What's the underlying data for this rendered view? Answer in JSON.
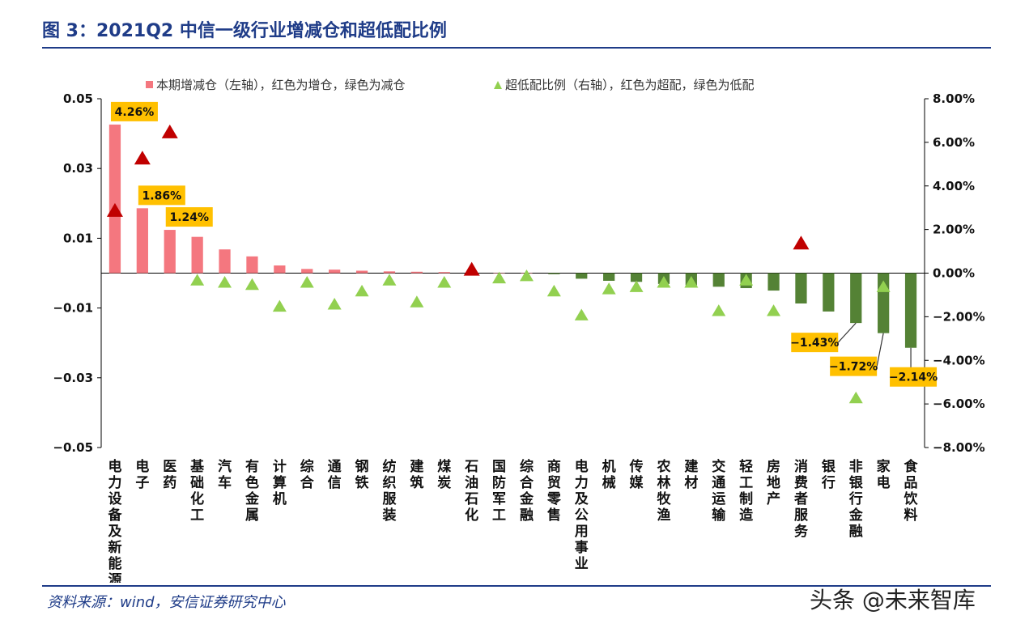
{
  "title": "图 3：2021Q2 中信一级行业增减仓和超低配比例",
  "source": "资料来源：wind，安信证券研究中心",
  "watermark": "头条 @未来智库",
  "chart_data": {
    "type": "bar",
    "categories": [
      "电力设备及新能源",
      "电子",
      "医药",
      "基础化工",
      "汽车",
      "有色金属",
      "计算机",
      "综合",
      "通信",
      "钢铁",
      "纺织服装",
      "建筑",
      "煤炭",
      "石油石化",
      "国防军工",
      "综合金融",
      "商贸零售",
      "电力及公用事业",
      "机械",
      "传媒",
      "农林牧渔",
      "建材",
      "交通运输",
      "轻工制造",
      "房地产",
      "消费者服务",
      "银行",
      "非银行金融",
      "家电",
      "食品饮料"
    ],
    "series": [
      {
        "name": "本期增减仓（左轴），红色为增仓，绿色为减仓",
        "type": "bar",
        "axis": "left",
        "values": [
          0.0426,
          0.0186,
          0.0124,
          0.0104,
          0.0068,
          0.0048,
          0.0022,
          0.0012,
          0.001,
          0.0007,
          0.0005,
          0.0004,
          0.0003,
          0.0,
          0.0,
          0.0,
          -0.0003,
          -0.0016,
          -0.0022,
          -0.0025,
          -0.0031,
          -0.0035,
          -0.0039,
          -0.0043,
          -0.005,
          -0.0087,
          -0.011,
          -0.0143,
          -0.0172,
          -0.0214
        ]
      },
      {
        "name": "超低配比例（右轴），红色为超配，绿色为低配",
        "type": "scatter",
        "axis": "right",
        "values": [
          0.029,
          0.053,
          0.065,
          -0.003,
          -0.004,
          -0.005,
          -0.015,
          -0.004,
          -0.014,
          -0.008,
          -0.003,
          -0.013,
          -0.004,
          0.002,
          -0.002,
          -0.001,
          -0.008,
          -0.019,
          -0.007,
          -0.006,
          -0.004,
          -0.004,
          -0.017,
          -0.003,
          -0.017,
          0.014,
          null,
          -0.057,
          -0.006,
          null
        ]
      }
    ],
    "yaxis_left": {
      "ticks": [
        "0.05",
        "0.03",
        "0.01",
        "−0.01",
        "−0.03",
        "−0.05"
      ],
      "range": [
        -0.05,
        0.05
      ]
    },
    "yaxis_right": {
      "ticks": [
        "8.00%",
        "6.00%",
        "4.00%",
        "2.00%",
        "0.00%",
        "−2.00%",
        "−4.00%",
        "−6.00%",
        "−8.00%"
      ],
      "range": [
        -0.08,
        0.08
      ]
    },
    "data_labels": [
      {
        "index": 0,
        "text": "4.26%"
      },
      {
        "index": 1,
        "text": "1.86%"
      },
      {
        "index": 2,
        "text": "1.24%"
      },
      {
        "index": 27,
        "text": "−1.43%"
      },
      {
        "index": 28,
        "text": "−1.72%"
      },
      {
        "index": 29,
        "text": "−2.14%"
      }
    ],
    "colors": {
      "bar_positive": "#f4777f",
      "bar_negative": "#548235",
      "marker_positive": "#c00000",
      "marker_negative": "#92d050",
      "label_bg": "#ffc000"
    },
    "legend_position": "top",
    "grid": false
  }
}
